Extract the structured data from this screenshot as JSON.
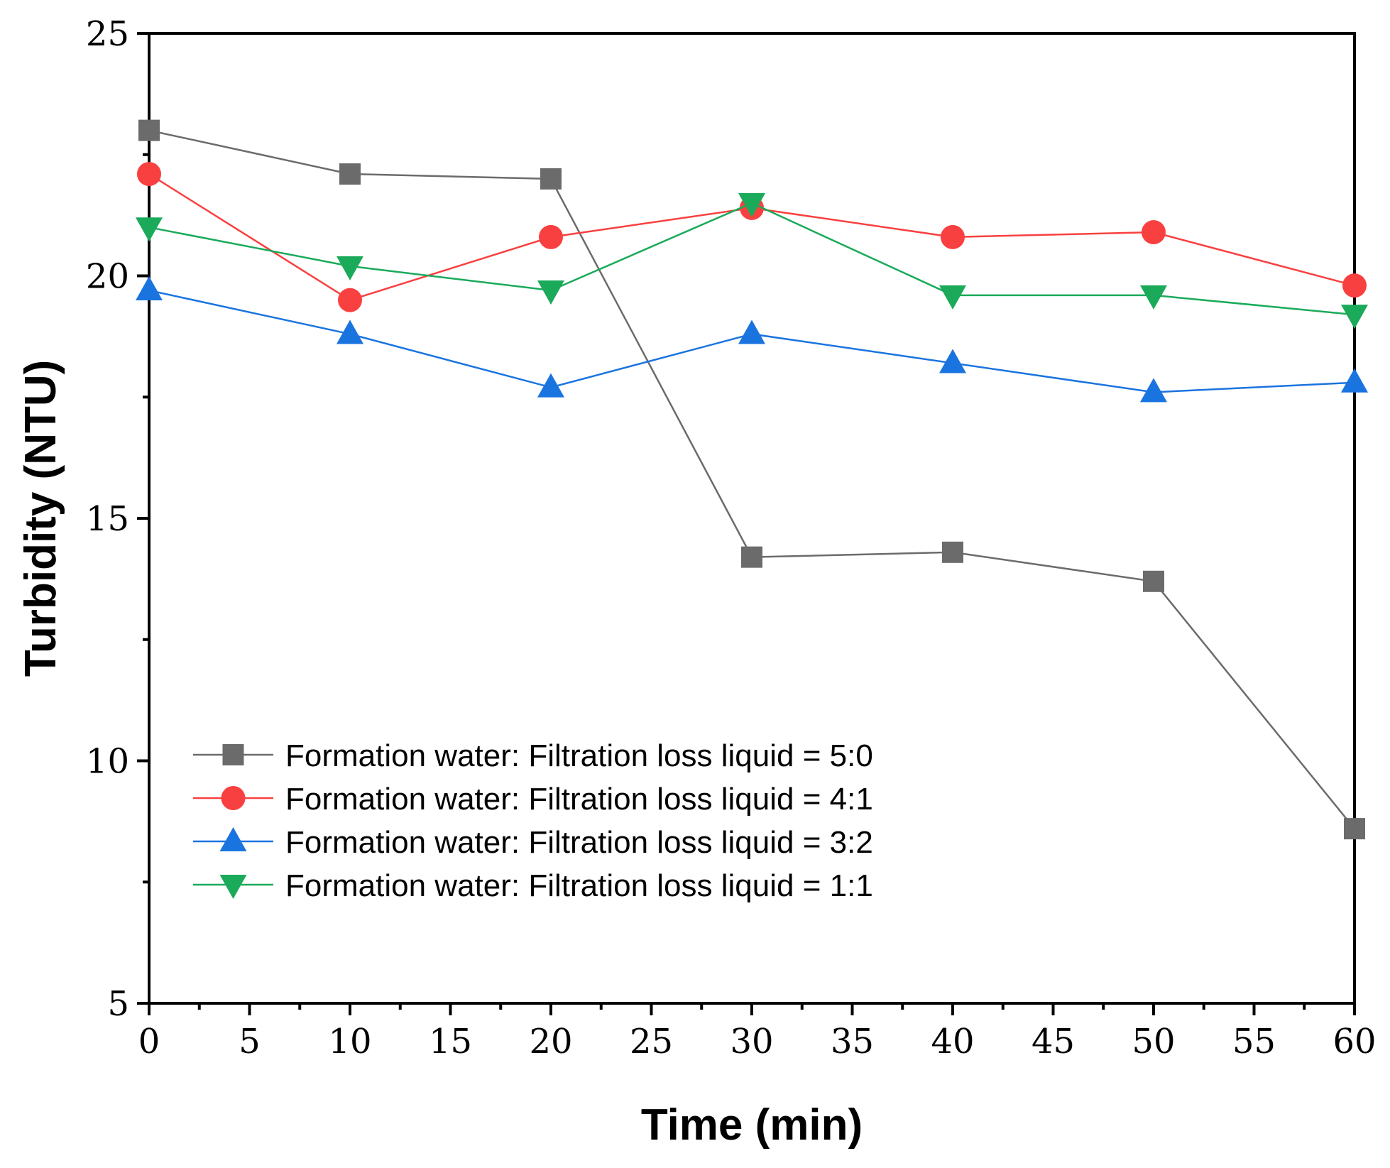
{
  "chart_data": {
    "type": "line",
    "title": "",
    "xlabel": "Time (min)",
    "ylabel": "Turbidity (NTU)",
    "xlim": [
      0,
      60
    ],
    "ylim": [
      5,
      25
    ],
    "x_major_ticks": [
      0,
      5,
      10,
      15,
      20,
      25,
      30,
      35,
      40,
      45,
      50,
      55,
      60
    ],
    "y_major_ticks": [
      5,
      10,
      15,
      20,
      25
    ],
    "x_tick_labels": [
      "0",
      "5",
      "10",
      "15",
      "20",
      "25",
      "30",
      "35",
      "40",
      "45",
      "50",
      "55",
      "60"
    ],
    "y_tick_labels": [
      "5",
      "10",
      "15",
      "20",
      "25"
    ],
    "grid": false,
    "legend_position": "lower-left",
    "x": [
      0,
      10,
      20,
      30,
      40,
      50,
      60
    ],
    "series": [
      {
        "name": "Formation water: Filtration loss liquid = 5:0",
        "color": "#6b6b6b",
        "marker": "square",
        "values": [
          23.0,
          22.1,
          22.0,
          14.2,
          14.3,
          13.7,
          8.6
        ]
      },
      {
        "name": "Formation water: Filtration loss liquid = 4:1",
        "color": "#f94040",
        "marker": "circle",
        "values": [
          22.1,
          19.5,
          20.8,
          21.4,
          20.8,
          20.9,
          19.8
        ]
      },
      {
        "name": "Formation water: Filtration loss liquid = 3:2",
        "color": "#1a74e0",
        "marker": "triangle-up",
        "values": [
          19.7,
          18.8,
          17.7,
          18.8,
          18.2,
          17.6,
          17.8
        ]
      },
      {
        "name": "Formation water: Filtration loss liquid = 1:1",
        "color": "#1aaa5a",
        "marker": "triangle-down",
        "values": [
          21.0,
          20.2,
          19.7,
          21.5,
          19.6,
          19.6,
          19.2
        ]
      }
    ]
  }
}
